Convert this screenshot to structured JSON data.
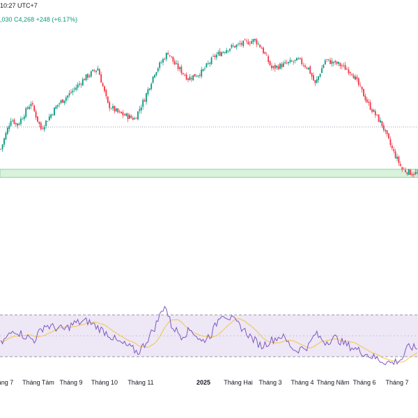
{
  "header": {
    "time": "10:27 UTC+7",
    "ohlc_fragment": ",030",
    "close_label": "C4,268",
    "change": "+248 (+6.17%)"
  },
  "colors": {
    "up": "#089981",
    "down": "#f23645",
    "rsi_line": "#7e57c2",
    "rsi_ma": "#f5c542",
    "rsi_band": "#ede7f6",
    "support_zone": "#d9f2dc"
  },
  "x_axis": {
    "labels": [
      "áng 7",
      "Tháng Tám",
      "Tháng 9",
      "Tháng 10",
      "Tháng 11",
      "2025",
      "Tháng Hai",
      "Tháng 3",
      "Tháng 4",
      "Tháng Năm",
      "Tháng 6",
      "Tháng 7"
    ]
  },
  "chart_data": {
    "type": "candlestick",
    "title": "",
    "xlabel": "",
    "ylabel": "",
    "grid": false,
    "price_scale": "relative (0 = bottom of view, 100 = top of view)",
    "dotted_reference_level": 51,
    "support_zone": [
      26,
      30
    ],
    "trend_points": [
      [
        0,
        40
      ],
      [
        6,
        55
      ],
      [
        10,
        52
      ],
      [
        18,
        63
      ],
      [
        24,
        50
      ],
      [
        34,
        62
      ],
      [
        42,
        68
      ],
      [
        50,
        75
      ],
      [
        58,
        80
      ],
      [
        64,
        62
      ],
      [
        70,
        58
      ],
      [
        80,
        55
      ],
      [
        86,
        65
      ],
      [
        92,
        78
      ],
      [
        100,
        88
      ],
      [
        104,
        82
      ],
      [
        112,
        75
      ],
      [
        120,
        78
      ],
      [
        128,
        86
      ],
      [
        136,
        90
      ],
      [
        144,
        92
      ],
      [
        152,
        94
      ],
      [
        156,
        90
      ],
      [
        162,
        80
      ],
      [
        170,
        82
      ],
      [
        178,
        84
      ],
      [
        184,
        80
      ],
      [
        188,
        72
      ],
      [
        194,
        84
      ],
      [
        202,
        82
      ],
      [
        210,
        78
      ],
      [
        220,
        62
      ],
      [
        228,
        52
      ],
      [
        234,
        40
      ],
      [
        240,
        30
      ],
      [
        246,
        28
      ]
    ],
    "rsi": {
      "overbought": 70,
      "oversold": 30,
      "points": [
        [
          0,
          42
        ],
        [
          8,
          56
        ],
        [
          14,
          50
        ],
        [
          20,
          46
        ],
        [
          26,
          60
        ],
        [
          32,
          58
        ],
        [
          38,
          56
        ],
        [
          44,
          62
        ],
        [
          52,
          64
        ],
        [
          58,
          58
        ],
        [
          64,
          52
        ],
        [
          70,
          44
        ],
        [
          76,
          40
        ],
        [
          82,
          34
        ],
        [
          86,
          42
        ],
        [
          92,
          58
        ],
        [
          98,
          80
        ],
        [
          102,
          60
        ],
        [
          108,
          50
        ],
        [
          114,
          56
        ],
        [
          120,
          44
        ],
        [
          126,
          52
        ],
        [
          132,
          72
        ],
        [
          138,
          66
        ],
        [
          144,
          58
        ],
        [
          150,
          48
        ],
        [
          156,
          40
        ],
        [
          162,
          46
        ],
        [
          168,
          50
        ],
        [
          176,
          36
        ],
        [
          184,
          40
        ],
        [
          188,
          52
        ],
        [
          194,
          44
        ],
        [
          200,
          48
        ],
        [
          206,
          42
        ],
        [
          214,
          36
        ],
        [
          222,
          30
        ],
        [
          228,
          26
        ],
        [
          234,
          24
        ],
        [
          240,
          28
        ],
        [
          244,
          40
        ],
        [
          248,
          38
        ]
      ]
    }
  }
}
